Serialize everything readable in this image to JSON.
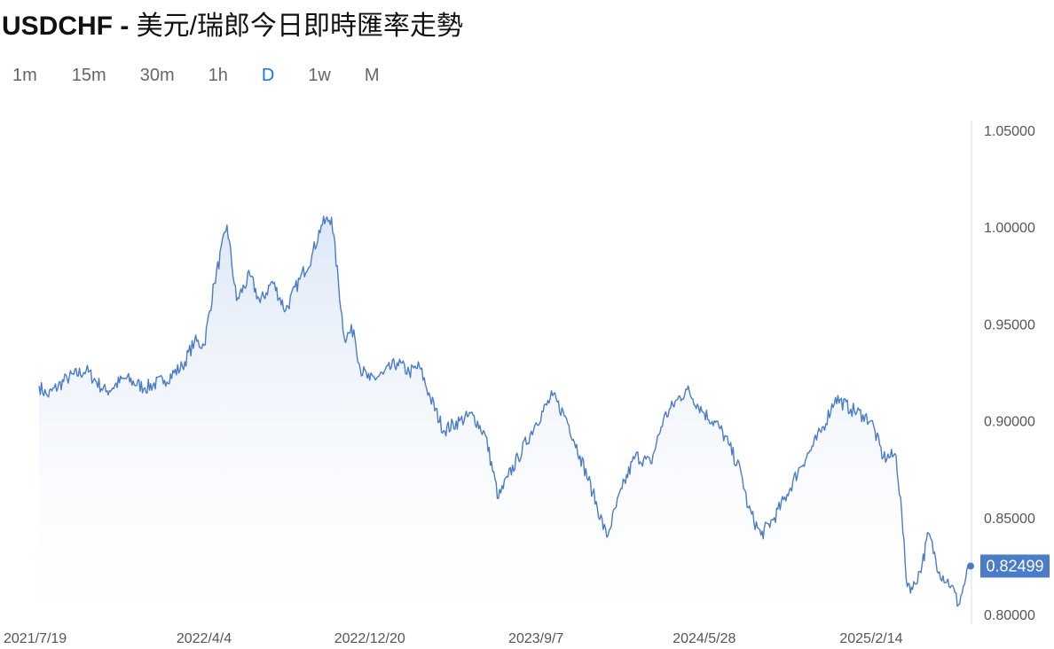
{
  "title": {
    "pair": "USDCHF",
    "separator": " - ",
    "description": "美元/瑞郎今日即時匯率走勢"
  },
  "tabs": [
    {
      "label": "1m",
      "active": false
    },
    {
      "label": "15m",
      "active": false
    },
    {
      "label": "30m",
      "active": false
    },
    {
      "label": "1h",
      "active": false
    },
    {
      "label": "D",
      "active": true
    },
    {
      "label": "1w",
      "active": false
    },
    {
      "label": "M",
      "active": false
    }
  ],
  "colors": {
    "line": "#4a7cc7",
    "fill_top": "#dbe6f5",
    "active_tab": "#1a73e8",
    "last_badge": "#4a7cc7"
  },
  "chart_data": {
    "type": "area",
    "title": "",
    "xlabel": "",
    "ylabel": "",
    "ylim": [
      0.795,
      1.055
    ],
    "y_ticks": [
      "1.05000",
      "1.00000",
      "0.95000",
      "0.90000",
      "0.85000",
      "0.80000"
    ],
    "y_tick_values": [
      1.05,
      1.0,
      0.95,
      0.9,
      0.85,
      0.8
    ],
    "x_ticks": [
      "2021/7/19",
      "2022/4/4",
      "2022/12/20",
      "2023/9/7",
      "2024/5/28",
      "2025/2/14"
    ],
    "xlim": [
      "2021-07-19",
      "2025-07-20"
    ],
    "grid": false,
    "last_value_label": "0.82499",
    "series": [
      {
        "x": [
          "2021-07-19",
          "2021-08-01",
          "2021-09-01",
          "2021-10-01",
          "2021-11-01",
          "2021-12-01",
          "2022-01-01",
          "2022-02-01",
          "2022-03-01",
          "2022-03-20",
          "2022-04-04",
          "2022-04-20",
          "2022-05-10",
          "2022-05-25",
          "2022-06-15",
          "2022-07-01",
          "2022-07-20",
          "2022-08-10",
          "2022-09-01",
          "2022-09-20",
          "2022-10-05",
          "2022-10-21",
          "2022-11-10",
          "2022-11-25",
          "2022-12-05",
          "2022-12-20",
          "2023-01-10",
          "2023-02-01",
          "2023-02-20",
          "2023-03-08",
          "2023-03-25",
          "2023-04-15",
          "2023-05-10",
          "2023-05-31",
          "2023-06-20",
          "2023-07-10",
          "2023-07-25",
          "2023-08-10",
          "2023-09-07",
          "2023-10-03",
          "2023-10-25",
          "2023-11-15",
          "2023-12-05",
          "2023-12-27",
          "2024-01-20",
          "2024-02-10",
          "2024-03-05",
          "2024-03-25",
          "2024-04-16",
          "2024-05-01",
          "2024-05-28",
          "2024-06-20",
          "2024-07-05",
          "2024-07-25",
          "2024-08-05",
          "2024-08-25",
          "2024-09-15",
          "2024-10-05",
          "2024-10-25",
          "2024-11-15",
          "2024-12-01",
          "2024-12-20",
          "2025-01-13",
          "2025-02-01",
          "2025-02-14",
          "2025-03-05",
          "2025-03-25",
          "2025-04-03",
          "2025-04-10",
          "2025-04-20",
          "2025-05-05",
          "2025-05-15",
          "2025-06-01",
          "2025-06-20",
          "2025-07-01",
          "2025-07-18"
        ],
        "values": [
          0.918,
          0.913,
          0.922,
          0.926,
          0.915,
          0.922,
          0.917,
          0.921,
          0.928,
          0.941,
          0.939,
          0.971,
          1.001,
          0.962,
          0.975,
          0.961,
          0.972,
          0.957,
          0.973,
          0.985,
          1.001,
          1.005,
          0.943,
          0.947,
          0.927,
          0.921,
          0.924,
          0.93,
          0.925,
          0.928,
          0.912,
          0.895,
          0.9,
          0.903,
          0.892,
          0.86,
          0.871,
          0.881,
          0.899,
          0.913,
          0.901,
          0.882,
          0.863,
          0.84,
          0.865,
          0.882,
          0.878,
          0.901,
          0.911,
          0.916,
          0.904,
          0.897,
          0.888,
          0.873,
          0.855,
          0.841,
          0.85,
          0.862,
          0.876,
          0.887,
          0.897,
          0.912,
          0.906,
          0.903,
          0.9,
          0.881,
          0.882,
          0.852,
          0.818,
          0.813,
          0.826,
          0.842,
          0.822,
          0.815,
          0.805,
          0.825
        ]
      }
    ]
  }
}
